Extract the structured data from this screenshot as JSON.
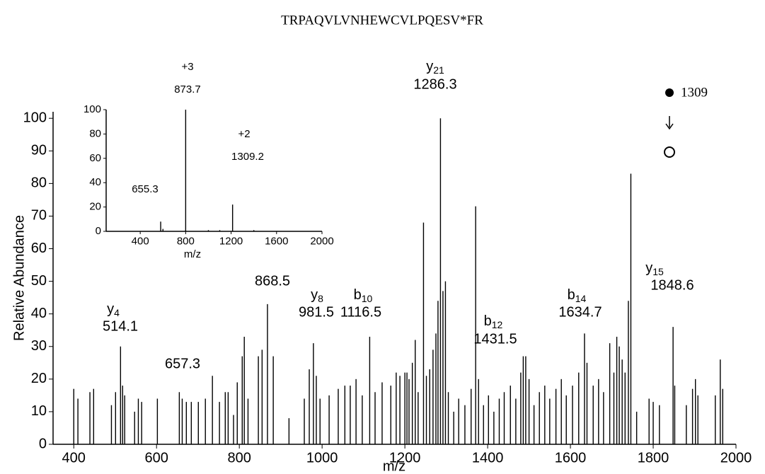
{
  "title": "TRPAQVLVNHEWCVLPQESV*FR",
  "precursor": "1309",
  "chart_data": [
    {
      "type": "spectrum",
      "x_label": "m/z",
      "y_label": "Relative Abundance",
      "xlim": [
        350,
        2000
      ],
      "ylim": [
        0,
        102
      ],
      "xticks": [
        400,
        600,
        800,
        1000,
        1200,
        1400,
        1600,
        1800,
        2000
      ],
      "yticks": [
        0,
        10,
        20,
        30,
        40,
        50,
        60,
        70,
        80,
        90,
        100
      ],
      "color": "#000000",
      "x": [
        400,
        410,
        439,
        448,
        491,
        501,
        513,
        518,
        523,
        547,
        556,
        564,
        602,
        655,
        662,
        672,
        684,
        701,
        718,
        735,
        752,
        766,
        773,
        786,
        795,
        807,
        812,
        821,
        846,
        855,
        868,
        882,
        920,
        957,
        969,
        979,
        986,
        995,
        1017,
        1039,
        1055,
        1068,
        1082,
        1097,
        1115,
        1128,
        1145,
        1166,
        1179,
        1188,
        1200,
        1205,
        1210,
        1218,
        1225,
        1232,
        1245,
        1252,
        1260,
        1268,
        1275,
        1280,
        1286,
        1292,
        1298,
        1305,
        1318,
        1330,
        1345,
        1360,
        1371,
        1378,
        1390,
        1402,
        1415,
        1428,
        1440,
        1455,
        1468,
        1480,
        1486,
        1492,
        1500,
        1512,
        1525,
        1538,
        1550,
        1565,
        1578,
        1590,
        1605,
        1620,
        1634,
        1640,
        1655,
        1668,
        1680,
        1695,
        1705,
        1712,
        1718,
        1725,
        1732,
        1740,
        1746,
        1760,
        1790,
        1800,
        1815,
        1848,
        1852,
        1880,
        1895,
        1902,
        1908,
        1950,
        1962,
        1968
      ],
      "values": [
        17,
        14,
        16,
        17,
        12,
        16,
        30,
        18,
        15,
        10,
        14,
        13,
        14,
        16,
        14,
        13,
        13,
        13,
        14,
        21,
        13,
        16,
        16,
        9,
        19,
        27,
        33,
        14,
        27,
        29,
        43,
        27,
        8,
        14,
        23,
        31,
        21,
        14,
        15,
        17,
        18,
        18,
        20,
        15,
        33,
        16,
        19,
        18,
        22,
        21,
        22,
        22,
        20,
        25,
        32,
        16,
        68,
        21,
        23,
        29,
        34,
        44,
        100,
        47,
        50,
        16,
        10,
        14,
        12,
        17,
        73,
        20,
        12,
        15,
        10,
        14,
        16,
        18,
        14,
        22,
        27,
        27,
        20,
        12,
        16,
        18,
        14,
        17,
        20,
        15,
        18,
        22,
        34,
        25,
        18,
        20,
        16,
        31,
        22,
        33,
        30,
        26,
        22,
        44,
        83,
        10,
        14,
        13,
        12,
        36,
        18,
        12,
        17,
        20,
        15,
        15,
        26,
        17
      ],
      "annotations": [
        {
          "ion": "y",
          "sub": "4",
          "text": "514.1"
        },
        {
          "text": "657.3"
        },
        {
          "text": "868.5"
        },
        {
          "ion": "y",
          "sub": "8",
          "text": "981.5"
        },
        {
          "ion": "b",
          "sub": "10",
          "text": "1116.5"
        },
        {
          "ion": "y",
          "sub": "21",
          "text": "1286.3"
        },
        {
          "ion": "b",
          "sub": "12",
          "text": "1431.5"
        },
        {
          "ion": "b",
          "sub": "14",
          "text": "1634.7"
        },
        {
          "ion": "y",
          "sub": "15",
          "text": "1848.6"
        }
      ]
    },
    {
      "type": "spectrum",
      "x_label": "m/z",
      "xlim": [
        100,
        2000
      ],
      "ylim": [
        0,
        100
      ],
      "xticks": [
        400,
        800,
        1200,
        1600,
        2000
      ],
      "yticks": [
        0,
        20,
        40,
        60,
        80,
        100
      ],
      "color": "#000000",
      "x": [
        580,
        600,
        800,
        1000,
        1100,
        1213,
        1400
      ],
      "values": [
        8,
        2,
        100,
        1,
        1,
        22,
        1
      ],
      "annotations": [
        {
          "text": "+3"
        },
        {
          "text": "873.7"
        },
        {
          "text": "+2"
        },
        {
          "text": "1309.2"
        },
        {
          "text": "655.3"
        }
      ]
    }
  ]
}
